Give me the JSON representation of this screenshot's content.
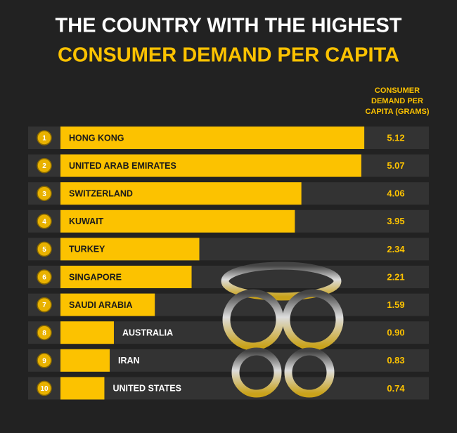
{
  "chart_data": {
    "type": "bar",
    "orientation": "horizontal",
    "title": "THE COUNTRY WITH THE HIGHEST",
    "subtitle": "CONSUMER DEMAND PER CAPITA",
    "value_header": "CONSUMER DEMAND PER CAPITA (GRAMS)",
    "ranks": [
      1,
      2,
      3,
      4,
      5,
      6,
      7,
      8,
      9,
      10
    ],
    "categories": [
      "HONG KONG",
      "UNITED ARAB EMIRATES",
      "SWITZERLAND",
      "KUWAIT",
      "TURKEY",
      "SINGAPORE",
      "SAUDI ARABIA",
      "AUSTRALIA",
      "IRAN",
      "UNITED STATES"
    ],
    "values": [
      5.12,
      5.07,
      4.06,
      3.95,
      2.34,
      2.21,
      1.59,
      0.9,
      0.83,
      0.74
    ],
    "value_labels": [
      "5.12",
      "5.07",
      "4.06",
      "3.95",
      "2.34",
      "2.21",
      "1.59",
      "0.90",
      "0.83",
      "0.74"
    ],
    "color": "#fcc200"
  }
}
